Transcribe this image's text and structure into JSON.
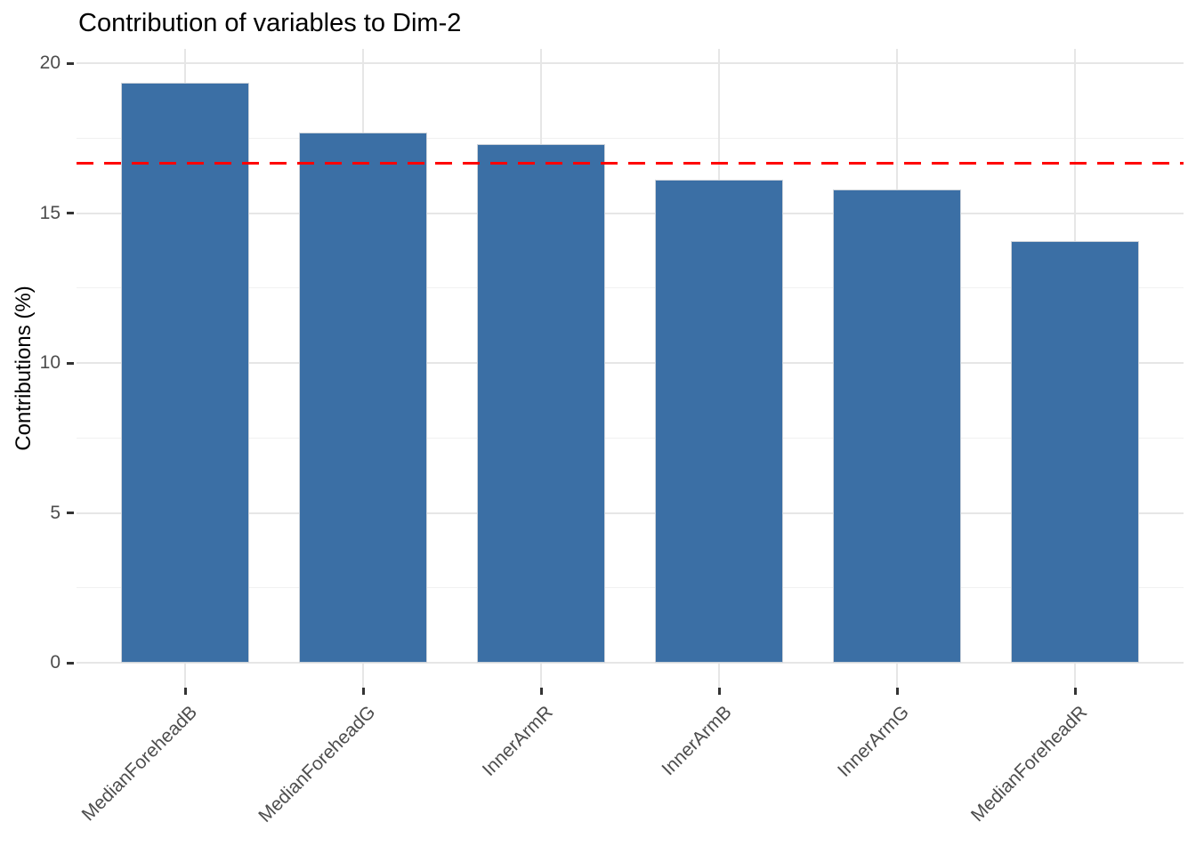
{
  "chart_data": {
    "type": "bar",
    "title": "Contribution of variables to Dim-2",
    "ylabel": "Contributions (%)",
    "xlabel": "",
    "categories": [
      "MedianForeheadB",
      "MedianForeheadG",
      "InnerArmR",
      "InnerArmB",
      "InnerArmG",
      "MedianForeheadR"
    ],
    "values": [
      19.34,
      17.68,
      17.3,
      16.1,
      15.78,
      14.06
    ],
    "ylim": [
      0,
      20.46
    ],
    "yticks": [
      0,
      5,
      10,
      15,
      20
    ],
    "yticks_minor": [
      2.5,
      7.5,
      12.5,
      17.5
    ],
    "grid": true,
    "legend": "none",
    "bar_fill": "#3B6FA5",
    "bar_border": "#CDD3DA",
    "reference_line": {
      "value": 16.67,
      "style": "dashed",
      "color": "#FF0000"
    }
  }
}
